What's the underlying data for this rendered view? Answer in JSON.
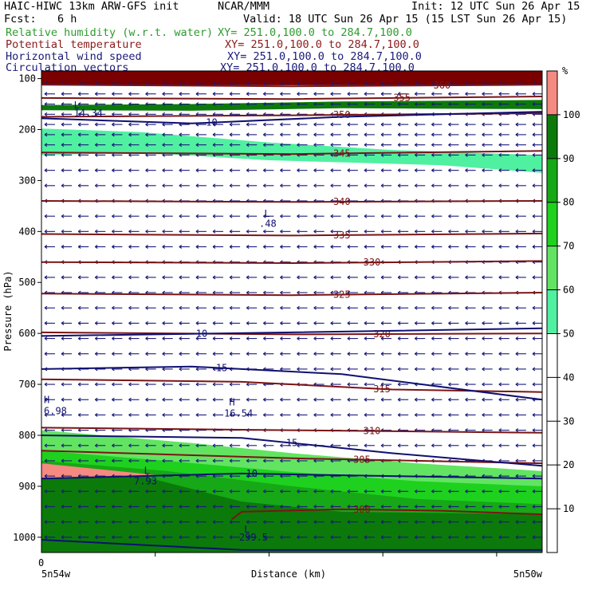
{
  "header": {
    "model_title": "HAIC-HIWC 13km ARW-GFS init",
    "center": "NCAR/MMM",
    "init": "Init: 12 UTC Sun 26 Apr 15",
    "fcst_label": "Fcst:",
    "fcst_value": "6 h",
    "valid": "Valid: 18 UTC Sun 26 Apr 15 (15 LST Sun 26 Apr 15)",
    "fields": [
      {
        "name": "Relative humidity (w.r.t. water)",
        "xy": "XY= 251.0,100.0 to 284.7,100.0",
        "color": "#2e9b2e"
      },
      {
        "name": "Potential temperature",
        "xy": "XY= 251.0,100.0 to 284.7,100.0",
        "color": "#8b1a1a"
      },
      {
        "name": "Horizontal wind speed",
        "xy": "XY= 251.0,100.0 to 284.7,100.0",
        "color": "#1a1a7a"
      },
      {
        "name": "Circulation vectors",
        "xy": "XY= 251.0,100.0 to 284.7,100.0",
        "color": "#1a1a7a"
      }
    ]
  },
  "chart_data": {
    "type": "heatmap",
    "ylabel": "Pressure (hPa)",
    "xlabel": "Distance (km)",
    "y_ticks": [
      100,
      200,
      300,
      400,
      500,
      600,
      700,
      800,
      900,
      1000
    ],
    "ylim": [
      1030,
      85
    ],
    "x_tick_label": "0",
    "x_left_label": "5n54w",
    "x_right_label": "5n50w",
    "colorbar": {
      "unit": "%",
      "ticks": [
        10,
        20,
        30,
        40,
        50,
        60,
        70,
        80,
        90,
        100
      ],
      "bins": [
        {
          "from": 50,
          "to": 60,
          "color": "#4ff0a0"
        },
        {
          "from": 60,
          "to": 70,
          "color": "#62e462"
        },
        {
          "from": 70,
          "to": 80,
          "color": "#1ed11e"
        },
        {
          "from": 80,
          "to": 90,
          "color": "#16a816"
        },
        {
          "from": 90,
          "to": 100,
          "color": "#0b7a0b"
        },
        {
          "from": 100,
          "to": 110,
          "color": "#f58a80"
        }
      ]
    },
    "rh_regions": [
      {
        "bin": 90,
        "top": [
          [
            0,
            152
          ],
          [
            0.3,
            150
          ],
          [
            0.6,
            145
          ],
          [
            1,
            142
          ]
        ],
        "bottom": [
          [
            0,
            162
          ],
          [
            0.3,
            163
          ],
          [
            0.6,
            158
          ],
          [
            1,
            160
          ]
        ]
      },
      {
        "bin": 50,
        "top": [
          [
            0,
            198
          ],
          [
            0.2,
            205
          ],
          [
            0.45,
            225
          ],
          [
            0.7,
            240
          ],
          [
            1,
            250
          ]
        ],
        "bottom": [
          [
            0,
            250
          ],
          [
            0.2,
            245
          ],
          [
            0.45,
            260
          ],
          [
            0.8,
            270
          ],
          [
            1,
            285
          ]
        ]
      },
      {
        "bin": 60,
        "top": [
          [
            0,
            790
          ],
          [
            0.3,
            815
          ],
          [
            0.5,
            835
          ],
          [
            0.75,
            855
          ],
          [
            1,
            870
          ]
        ],
        "bottom": [
          [
            0,
            1030
          ],
          [
            1,
            1030
          ]
        ]
      },
      {
        "bin": 70,
        "top": [
          [
            0,
            830
          ],
          [
            0.25,
            850
          ],
          [
            0.5,
            872
          ],
          [
            0.75,
            890
          ],
          [
            1,
            900
          ]
        ],
        "bottom": [
          [
            0,
            1030
          ],
          [
            1,
            1030
          ]
        ]
      },
      {
        "bin": 80,
        "top": [
          [
            0,
            850
          ],
          [
            0.25,
            870
          ],
          [
            0.5,
            900
          ],
          [
            0.75,
            925
          ],
          [
            1,
            935
          ]
        ],
        "bottom": [
          [
            0,
            1030
          ],
          [
            1,
            1030
          ]
        ]
      },
      {
        "bin": 90,
        "top": [
          [
            0,
            868
          ],
          [
            0.2,
            880
          ],
          [
            0.4,
            930
          ],
          [
            0.6,
            950
          ],
          [
            1,
            955
          ]
        ],
        "bottom": [
          [
            0,
            1030
          ],
          [
            1,
            1030
          ]
        ]
      }
    ],
    "theta_contours": [
      {
        "label": "360",
        "p": [
          [
            0,
            112
          ],
          [
            0.5,
            115
          ],
          [
            1,
            112
          ]
        ],
        "label_x": 0.8
      },
      {
        "label": "355",
        "p": [
          [
            0,
            138
          ],
          [
            0.5,
            140
          ],
          [
            1,
            135
          ]
        ],
        "label_x": 0.72
      },
      {
        "label": "350",
        "p": [
          [
            0,
            175
          ],
          [
            0.5,
            172
          ],
          [
            1,
            168
          ]
        ],
        "label_x": 0.6
      },
      {
        "label": "345",
        "p": [
          [
            0,
            245
          ],
          [
            0.5,
            248
          ],
          [
            1,
            242
          ]
        ],
        "label_x": 0.6
      },
      {
        "label": "340",
        "p": [
          [
            0,
            340
          ],
          [
            0.5,
            342
          ],
          [
            1,
            340
          ]
        ],
        "label_x": 0.6
      },
      {
        "label": "335",
        "p": [
          [
            0,
            405
          ],
          [
            0.5,
            408
          ],
          [
            1,
            404
          ]
        ],
        "label_x": 0.6
      },
      {
        "label": "330",
        "p": [
          [
            0,
            460
          ],
          [
            0.5,
            462
          ],
          [
            1,
            458
          ]
        ],
        "label_x": 0.66
      },
      {
        "label": "325",
        "p": [
          [
            0,
            522
          ],
          [
            0.5,
            525
          ],
          [
            1,
            520
          ]
        ],
        "label_x": 0.6
      },
      {
        "label": "320",
        "p": [
          [
            0,
            598
          ],
          [
            0.5,
            602
          ],
          [
            1,
            600
          ]
        ],
        "label_x": 0.68
      },
      {
        "label": "315",
        "p": [
          [
            0,
            690
          ],
          [
            0.4,
            695
          ],
          [
            0.7,
            710
          ],
          [
            1,
            715
          ]
        ],
        "label_x": 0.68
      },
      {
        "label": "310",
        "p": [
          [
            0,
            785
          ],
          [
            0.5,
            790
          ],
          [
            1,
            795
          ]
        ],
        "label_x": 0.66
      },
      {
        "label": "305",
        "p": [
          [
            0,
            830
          ],
          [
            0.5,
            845
          ],
          [
            1,
            855
          ]
        ],
        "label_x": 0.64
      },
      {
        "label": "300",
        "p": [
          [
            0.38,
            965
          ],
          [
            0.4,
            950
          ],
          [
            0.6,
            945
          ],
          [
            0.8,
            948
          ],
          [
            1,
            955
          ]
        ],
        "label_x": 0.64
      }
    ],
    "wind_contours": [
      {
        "label": "10",
        "p": [
          [
            0,
            178
          ],
          [
            0.3,
            188
          ],
          [
            0.6,
            175
          ],
          [
            1,
            165
          ]
        ],
        "label_x": 0.34
      },
      {
        "label": "10",
        "p": [
          [
            0,
            605
          ],
          [
            0.5,
            598
          ],
          [
            1,
            590
          ]
        ],
        "label_x": 0.32
      },
      {
        "label": "15",
        "p": [
          [
            0,
            670
          ],
          [
            0.3,
            665
          ],
          [
            0.6,
            680
          ],
          [
            1,
            730
          ]
        ],
        "label_x": 0.36
      },
      {
        "label": "15",
        "p": [
          [
            0,
            800
          ],
          [
            0.4,
            805
          ],
          [
            0.7,
            835
          ],
          [
            1,
            860
          ]
        ],
        "label_x": 0.5
      },
      {
        "label": "10",
        "p": [
          [
            0,
            885
          ],
          [
            0.4,
            875
          ],
          [
            0.7,
            880
          ],
          [
            1,
            885
          ]
        ],
        "label_x": 0.42
      },
      {
        "label": "",
        "p": [
          [
            0,
            1005
          ],
          [
            0.4,
            1025
          ],
          [
            1,
            1025
          ]
        ],
        "label_x": 0.5
      }
    ],
    "annotations": [
      {
        "text": "L",
        "x": 0.06,
        "p": 152
      },
      {
        "text": "14.34",
        "x": 0.06,
        "p": 168
      },
      {
        "text": "L",
        "x": 0.44,
        "p": 365
      },
      {
        "text": ".48",
        "x": 0.43,
        "p": 385
      },
      {
        "text": "H",
        "x": 0.0,
        "p": 730
      },
      {
        "text": "6.98",
        "x": 0.0,
        "p": 752
      },
      {
        "text": "H",
        "x": 0.37,
        "p": 735
      },
      {
        "text": "16.54",
        "x": 0.36,
        "p": 757
      },
      {
        "text": "L",
        "x": 0.2,
        "p": 870
      },
      {
        "text": "7.93",
        "x": 0.18,
        "p": 890
      },
      {
        "text": "L",
        "x": 0.4,
        "p": 985
      },
      {
        "text": "299.5",
        "x": 0.39,
        "p": 1000
      }
    ],
    "vectors": {
      "rows": [
        110,
        130,
        150,
        170,
        190,
        210,
        230,
        250,
        280,
        310,
        340,
        370,
        400,
        430,
        460,
        490,
        520,
        550,
        580,
        610,
        640,
        670,
        700,
        730,
        760,
        790,
        820,
        850,
        880,
        910,
        940,
        970,
        1000
      ],
      "columns": 30,
      "direction": "westward"
    }
  }
}
